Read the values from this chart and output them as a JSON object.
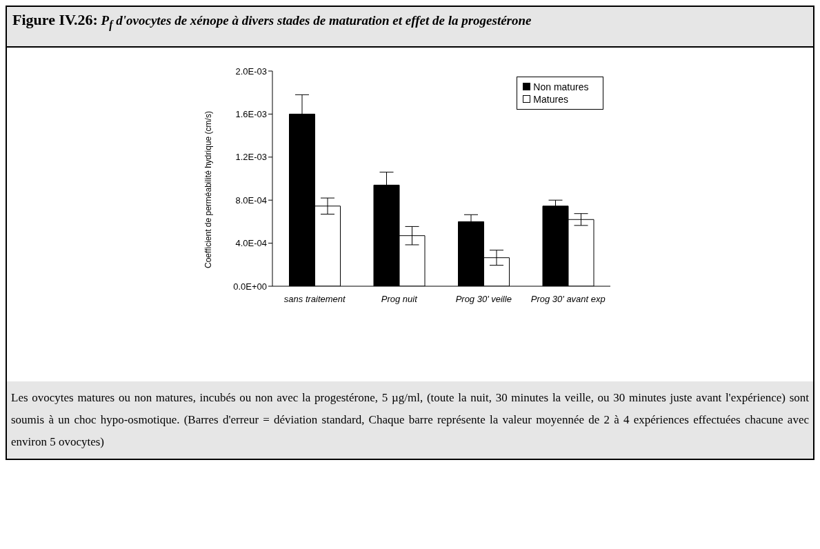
{
  "chart_data": {
    "type": "bar",
    "title": "Figure IV.26: P$_{f}$ d'ovocytes de xénope à divers stades de maturation et effet de la progestérone",
    "ylabel": "Coefficient de perméabilité hydrique (cm/s)",
    "categories": [
      "sans traitement",
      "Prog nuit",
      "Prog 30' veille",
      "Prog 30' avant exp"
    ],
    "series": [
      {
        "name": "Non matures",
        "color": "#000000",
        "values": [
          0.0016,
          0.00094,
          0.0006,
          0.000745
        ],
        "errors": [
          0.00018,
          0.00012,
          6.5e-05,
          5.5e-05
        ]
      },
      {
        "name": "Matures",
        "color": "#ffffff",
        "values": [
          0.000745,
          0.00047,
          0.000265,
          0.00062
        ],
        "errors": [
          7.5e-05,
          8.5e-05,
          7e-05,
          5.5e-05
        ]
      }
    ],
    "ylim": [
      0,
      0.002
    ],
    "yticks": [
      {
        "value": 0,
        "label": "0.0E+00"
      },
      {
        "value": 0.0004,
        "label": "4.0E-04"
      },
      {
        "value": 0.0008,
        "label": "8.0E-04"
      },
      {
        "value": 0.0012,
        "label": "1.2E-03"
      },
      {
        "value": 0.0016,
        "label": "1.6E-03"
      },
      {
        "value": 0.002,
        "label": "2.0E-03"
      }
    ],
    "grid": false,
    "legend": "top right",
    "annotations": [
      "Les ovocytes matures ou non matures, incubés ou non avec la progestérone, 5 µg/ml, (toute la nuit, 30 minutes la veille, ou 30 minutes juste avant l'expérience) sont soumis à un choc hypo-osmotique. (Barres d'erreur = déviation standard, Chaque barre représente la valeur moyennée de 2 à 4 expériences effectuées chacune avec environ 5 ovocytes)"
    ]
  }
}
